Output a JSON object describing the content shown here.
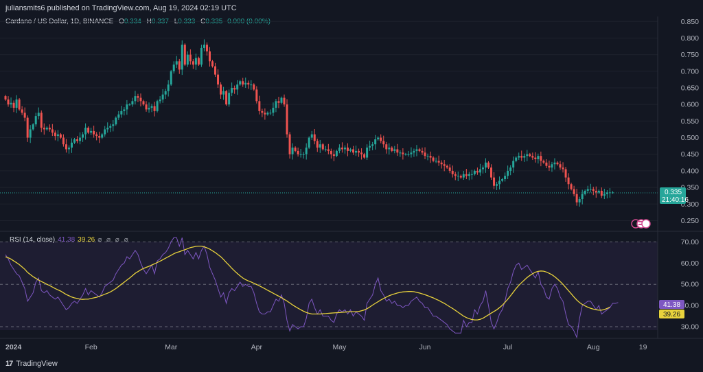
{
  "header": {
    "publish_line": "juliansmits6 published on TradingView.com, Aug 19, 2024 02:19 UTC"
  },
  "legend": {
    "symbol": "Cardano / US Dollar, 1D, BINANCE",
    "o_label": "O",
    "o_value": "0.334",
    "h_label": "H",
    "h_value": "0.337",
    "l_label": "L",
    "l_value": "0.333",
    "c_label": "C",
    "c_value": "0.335",
    "change": "0.000 (0.00%)"
  },
  "rsi_legend": {
    "label": "RSI (14, close)",
    "rsi_value": "41.38",
    "ma_value": "39.26",
    "icons": "⌀ ⌀ ⌀ ⌀"
  },
  "price_tag": {
    "value": "0.335",
    "countdown": "21:40:16"
  },
  "rsi_tags": {
    "rsi": "41.38",
    "ma": "39.26"
  },
  "footer": {
    "brand": "TradingView",
    "logo": "17"
  },
  "colors": {
    "up": "#26a69a",
    "down": "#ef5350",
    "rsi": "#7e57c2",
    "rsi_ma": "#e8d23c",
    "bg": "#131722"
  },
  "chart_data": [
    {
      "type": "candlestick",
      "title": "Cardano / US Dollar, 1D, BINANCE",
      "ylim": [
        0.22,
        0.865
      ],
      "y_ticks": [
        "0.850",
        "0.800",
        "0.750",
        "0.700",
        "0.650",
        "0.600",
        "0.550",
        "0.500",
        "0.450",
        "0.400",
        "0.350",
        "0.300",
        "0.250"
      ],
      "x_ticks": [
        "2024",
        "Feb",
        "Mar",
        "Apr",
        "May",
        "Jun",
        "Jul",
        "Aug",
        "19"
      ],
      "x_tick_days": [
        0,
        31,
        60,
        91,
        121,
        152,
        182,
        213,
        231
      ],
      "last_price": 0.335,
      "closes": [
        0.615,
        0.6,
        0.605,
        0.59,
        0.615,
        0.585,
        0.575,
        0.56,
        0.5,
        0.525,
        0.54,
        0.565,
        0.575,
        0.53,
        0.525,
        0.53,
        0.525,
        0.515,
        0.505,
        0.51,
        0.5,
        0.48,
        0.465,
        0.47,
        0.485,
        0.495,
        0.49,
        0.5,
        0.51,
        0.53,
        0.515,
        0.52,
        0.51,
        0.505,
        0.5,
        0.51,
        0.525,
        0.53,
        0.535,
        0.54,
        0.56,
        0.57,
        0.58,
        0.585,
        0.6,
        0.6,
        0.61,
        0.625,
        0.62,
        0.61,
        0.6,
        0.585,
        0.59,
        0.595,
        0.58,
        0.61,
        0.615,
        0.63,
        0.64,
        0.66,
        0.7,
        0.72,
        0.73,
        0.705,
        0.78,
        0.72,
        0.75,
        0.73,
        0.72,
        0.74,
        0.72,
        0.77,
        0.78,
        0.76,
        0.73,
        0.715,
        0.69,
        0.66,
        0.63,
        0.64,
        0.6,
        0.635,
        0.65,
        0.645,
        0.66,
        0.67,
        0.66,
        0.665,
        0.66,
        0.66,
        0.645,
        0.61,
        0.58,
        0.575,
        0.57,
        0.575,
        0.575,
        0.59,
        0.61,
        0.605,
        0.62,
        0.6,
        0.51,
        0.45,
        0.47,
        0.46,
        0.45,
        0.45,
        0.45,
        0.47,
        0.5,
        0.51,
        0.49,
        0.47,
        0.48,
        0.465,
        0.465,
        0.46,
        0.45,
        0.445,
        0.46,
        0.47,
        0.465,
        0.47,
        0.46,
        0.465,
        0.455,
        0.46,
        0.455,
        0.45,
        0.44,
        0.47,
        0.475,
        0.48,
        0.495,
        0.5,
        0.49,
        0.48,
        0.465,
        0.47,
        0.46,
        0.465,
        0.455,
        0.455,
        0.45,
        0.45,
        0.45,
        0.455,
        0.46,
        0.465,
        0.46,
        0.455,
        0.445,
        0.445,
        0.44,
        0.43,
        0.43,
        0.425,
        0.42,
        0.415,
        0.41,
        0.4,
        0.39,
        0.385,
        0.385,
        0.38,
        0.39,
        0.385,
        0.39,
        0.39,
        0.4,
        0.395,
        0.405,
        0.41,
        0.425,
        0.41,
        0.38,
        0.355,
        0.36,
        0.37,
        0.375,
        0.385,
        0.4,
        0.41,
        0.43,
        0.44,
        0.445,
        0.44,
        0.445,
        0.45,
        0.445,
        0.44,
        0.435,
        0.445,
        0.43,
        0.425,
        0.415,
        0.41,
        0.42,
        0.425,
        0.42,
        0.41,
        0.405,
        0.38,
        0.36,
        0.345,
        0.33,
        0.305,
        0.315,
        0.33,
        0.34,
        0.345,
        0.345,
        0.34,
        0.335,
        0.34,
        0.325,
        0.33,
        0.335,
        0.335,
        0.335
      ]
    },
    {
      "type": "line",
      "title": "RSI (14, close)",
      "ylim": [
        24.5,
        75
      ],
      "y_ticks": [
        "70.00",
        "60.00",
        "50.00",
        "40.00",
        "30.00"
      ],
      "levels": [
        70,
        50,
        30
      ],
      "series": [
        {
          "name": "RSI",
          "values": [
            64,
            62,
            59,
            57,
            55,
            54,
            51,
            48,
            42,
            44,
            46,
            51,
            53,
            47,
            46,
            47,
            45,
            44,
            43,
            44,
            42,
            40,
            38,
            39,
            41,
            42,
            41,
            43,
            45,
            48,
            45,
            47,
            46,
            45,
            44,
            46,
            49,
            50,
            51,
            52,
            55,
            57,
            59,
            60,
            63,
            62,
            64,
            66,
            64,
            60,
            57,
            55,
            57,
            59,
            55,
            61,
            62,
            64,
            65,
            67,
            70,
            72,
            72,
            68,
            72,
            64,
            66,
            64,
            62,
            65,
            62,
            66,
            68,
            64,
            58,
            55,
            52,
            48,
            44,
            46,
            41,
            46,
            48,
            47,
            49,
            51,
            49,
            50,
            49,
            49,
            46,
            41,
            37,
            36,
            36,
            37,
            37,
            40,
            43,
            42,
            45,
            41,
            33,
            28,
            31,
            30,
            29,
            30,
            30,
            34,
            41,
            43,
            39,
            36,
            38,
            35,
            35,
            35,
            33,
            32,
            36,
            38,
            37,
            38,
            36,
            38,
            35,
            37,
            36,
            35,
            33,
            41,
            43,
            45,
            50,
            53,
            47,
            45,
            42,
            43,
            41,
            42,
            40,
            40,
            39,
            40,
            40,
            42,
            43,
            44,
            42,
            41,
            39,
            39,
            37,
            35,
            35,
            34,
            33,
            32,
            31,
            29,
            28,
            27,
            27,
            27,
            33,
            30,
            32,
            32,
            38,
            36,
            40,
            42,
            47,
            40,
            32,
            29,
            32,
            36,
            38,
            42,
            48,
            51,
            56,
            59,
            60,
            57,
            58,
            59,
            57,
            55,
            53,
            56,
            50,
            48,
            44,
            43,
            48,
            50,
            48,
            44,
            42,
            36,
            31,
            30,
            28,
            25,
            34,
            40,
            41,
            42,
            42,
            40,
            38,
            40,
            36,
            37,
            38,
            39,
            41,
            41,
            41.4
          ]
        },
        {
          "name": "RSI-based MA",
          "values": [
            63,
            62.5,
            61.9,
            61,
            60.2,
            59.3,
            58.2,
            57.1,
            55.6,
            54.6,
            53.6,
            52.8,
            52,
            51.3,
            50.7,
            50,
            49.4,
            48.7,
            48,
            47.4,
            46.8,
            46,
            45.2,
            44.6,
            44,
            43.6,
            43.3,
            43,
            42.9,
            43,
            43,
            43.3,
            43.6,
            43.9,
            44.3,
            44.8,
            45.3,
            45.8,
            46.4,
            47.2,
            48,
            49,
            50,
            51,
            52,
            53,
            54.1,
            55.2,
            56,
            56.8,
            57.5,
            58,
            58.5,
            59.1,
            59.7,
            60.3,
            60.9,
            61.6,
            62.3,
            63,
            63.7,
            64.4,
            65,
            65.4,
            65.9,
            66.3,
            66.8,
            67.3,
            67.6,
            67.9,
            68,
            68,
            67.7,
            67.2,
            66.6,
            65.8,
            65,
            64,
            63,
            61.7,
            60.3,
            59,
            57.6,
            56.3,
            55.1,
            54,
            53,
            52.2,
            51.6,
            51.1,
            50.5,
            49.9,
            49.3,
            48.6,
            47.9,
            47.2,
            46.5,
            45.8,
            45.1,
            44.4,
            43.7,
            42.9,
            42.1,
            41.2,
            40.3,
            39.5,
            38.7,
            38,
            37.3,
            36.7,
            36.3,
            36,
            36,
            36,
            36,
            36.1,
            36.2,
            36.3,
            36.4,
            36.5,
            36.6,
            36.7,
            36.8,
            36.9,
            37,
            37.1,
            37.1,
            37.1,
            37.2,
            37.5,
            37.9,
            38.5,
            39.3,
            40.2,
            41,
            41.8,
            42.6,
            43.3,
            44,
            44.6,
            45.1,
            45.5,
            45.9,
            46.2,
            46.4,
            46.5,
            46.6,
            46.6,
            46.5,
            46.2,
            45.9,
            45.5,
            45.1,
            44.6,
            44.1,
            43.6,
            43,
            42.4,
            41.7,
            41,
            40.2,
            39.4,
            38.6,
            37.7,
            36.8,
            35.9,
            35,
            34.3,
            33.8,
            33.4,
            33.2,
            33.2,
            33.5,
            34,
            34.8,
            35.6,
            36.4,
            37.2,
            38,
            39,
            40.1,
            41.5,
            43,
            44.6,
            46.3,
            48,
            49.5,
            50.8,
            52,
            53.2,
            54.2,
            55,
            55.7,
            56.1,
            56.3,
            56.2,
            55.8,
            55.2,
            54.5,
            53.6,
            52.5,
            51.3,
            50,
            48.5,
            47,
            45.5,
            44,
            42.6,
            41.4,
            40.5,
            39.8,
            39.2,
            38.7,
            38.3,
            38,
            37.8,
            37.8,
            38.1,
            38.6,
            39.3
          ]
        }
      ]
    }
  ]
}
